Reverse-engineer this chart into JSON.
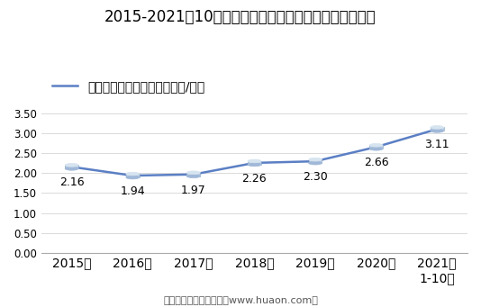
{
  "title": "2015-2021年10月大连商品交易所玉米淀粉期货成交均价",
  "legend_label": "玉米淀粉期货成交均价（万元/手）",
  "x_labels": [
    "2015年",
    "2016年",
    "2017年",
    "2018年",
    "2019年",
    "2020年",
    "2021年\n1-10月"
  ],
  "x_values": [
    0,
    1,
    2,
    3,
    4,
    5,
    6
  ],
  "y_values": [
    2.16,
    1.94,
    1.97,
    2.26,
    2.3,
    2.66,
    3.11
  ],
  "data_labels": [
    "2.16",
    "1.94",
    "1.97",
    "2.26",
    "2.30",
    "2.66",
    "3.11"
  ],
  "line_color": "#5B7FC4",
  "cyl_top_color": "#D6E4F0",
  "cyl_mid_color": "#B8CCE4",
  "cyl_bot_color": "#A0B8D8",
  "cyl_edge_color": "#8AAAC8",
  "ylim": [
    0.0,
    3.5
  ],
  "yticks": [
    0.0,
    0.5,
    1.0,
    1.5,
    2.0,
    2.5,
    3.0,
    3.5
  ],
  "background_color": "#FFFFFF",
  "footer": "制图：华经产业研究院（www.huaon.com）",
  "title_fontsize": 12,
  "label_fontsize": 9,
  "tick_fontsize": 8.5,
  "legend_fontsize": 9,
  "footer_fontsize": 8
}
